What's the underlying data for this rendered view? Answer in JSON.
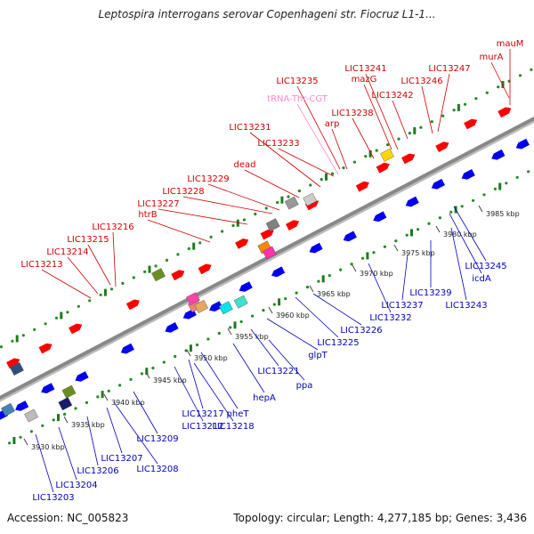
{
  "title": "Leptospira interrogans serovar Copenhageni str. Fiocruz L1-1...",
  "footer": {
    "accession": "Accession: NC_005823",
    "summary": "Topology: circular; Length: 4,277,185 bp; Genes: 3,436"
  },
  "colors": {
    "forward_label": "#cc0000",
    "reverse_label": "#0000bb",
    "trna_label": "#ff88cc",
    "forward_gene": "#ff0000",
    "reverse_gene": "#0000ee",
    "dot_track": "#228b22",
    "backbone": "#888888"
  },
  "scale_ticks": [
    {
      "label": "3930 kbp"
    },
    {
      "label": "3935 kbp"
    },
    {
      "label": "3940 kbp"
    },
    {
      "label": "3945 kbp"
    },
    {
      "label": "3950 kbp"
    },
    {
      "label": "3955 kbp"
    },
    {
      "label": "3960 kbp"
    },
    {
      "label": "3965 kbp"
    },
    {
      "label": "3970 kbp"
    },
    {
      "label": "3975 kbp"
    },
    {
      "label": "3980 kbp"
    },
    {
      "label": "3985 kbp"
    }
  ],
  "forward_labels": [
    {
      "text": "mauM",
      "kind": "gene"
    },
    {
      "text": "murA",
      "kind": "gene"
    },
    {
      "text": "LIC13247",
      "kind": "gene"
    },
    {
      "text": "LIC13241",
      "kind": "gene"
    },
    {
      "text": "mazG",
      "kind": "gene"
    },
    {
      "text": "LIC13246",
      "kind": "gene"
    },
    {
      "text": "LIC13235",
      "kind": "gene"
    },
    {
      "text": "LIC13242",
      "kind": "gene"
    },
    {
      "text": "tRNA-Thr-CGT",
      "kind": "trna"
    },
    {
      "text": "LIC13238",
      "kind": "gene"
    },
    {
      "text": "arp",
      "kind": "gene"
    },
    {
      "text": "LIC13231",
      "kind": "gene"
    },
    {
      "text": "LIC13233",
      "kind": "gene"
    },
    {
      "text": "dead",
      "kind": "gene"
    },
    {
      "text": "LIC13229",
      "kind": "gene"
    },
    {
      "text": "LIC13228",
      "kind": "gene"
    },
    {
      "text": "LIC13227",
      "kind": "gene"
    },
    {
      "text": "htrB",
      "kind": "gene"
    },
    {
      "text": "LIC13216",
      "kind": "gene"
    },
    {
      "text": "LIC13215",
      "kind": "gene"
    },
    {
      "text": "LIC13214",
      "kind": "gene"
    },
    {
      "text": "LIC13213",
      "kind": "gene"
    }
  ],
  "reverse_labels": [
    {
      "text": "LIC13245"
    },
    {
      "text": "icdA"
    },
    {
      "text": "LIC13243"
    },
    {
      "text": "LIC13239"
    },
    {
      "text": "LIC13237"
    },
    {
      "text": "LIC13232"
    },
    {
      "text": "LIC13226"
    },
    {
      "text": "LIC13225"
    },
    {
      "text": "glpT"
    },
    {
      "text": "LIC13221"
    },
    {
      "text": "ppa"
    },
    {
      "text": "hepA"
    },
    {
      "text": "pheT"
    },
    {
      "text": "LIC13217"
    },
    {
      "text": "LIC13218"
    },
    {
      "text": "LIC13212"
    },
    {
      "text": "LIC13209"
    },
    {
      "text": "LIC13208"
    },
    {
      "text": "LIC13207"
    },
    {
      "text": "LIC13206"
    },
    {
      "text": "LIC13204"
    },
    {
      "text": "LIC13203"
    }
  ],
  "forward_gene_colors": [
    "#ff0000",
    "#ff0000",
    "#ff0000",
    "#ff0000",
    "#ff0000",
    "#ff0000",
    "#ff0000",
    "#ff0000",
    "#ff0000",
    "#ff0000",
    "#ff0000",
    "#ff0000",
    "#ff0000",
    "#ff0000",
    "#ff0000",
    "#ff0000",
    "#ff0000"
  ],
  "reverse_gene_colors": [
    "#0000ee",
    "#0000ee",
    "#0000ee",
    "#0000ee",
    "#0000ee",
    "#0000ee",
    "#0000ee",
    "#0000ee",
    "#0000ee",
    "#0000ee",
    "#0000ee",
    "#0000ee",
    "#0000ee",
    "#0000ee",
    "#0000ee",
    "#0000ee",
    "#0000ee",
    "#0000ee",
    "#0000ee"
  ],
  "feature_colors": [
    "#6b8e23",
    "#ff8800",
    "#ff33aa",
    "#999999",
    "#cccccc",
    "#00e5e5",
    "#808080",
    "#f08080",
    "#ff44aa",
    "#e6a85c",
    "#2f4f7f",
    "#6b8e23",
    "#40e0d0",
    "#bbbbbb",
    "#1a1a6e",
    "#ffd700",
    "#4682b4"
  ]
}
